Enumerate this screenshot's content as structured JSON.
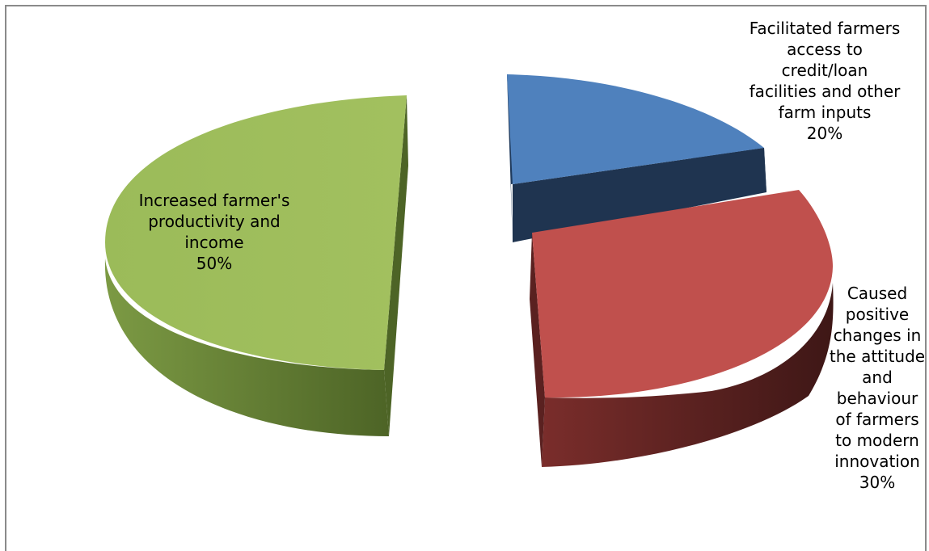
{
  "chart_data": {
    "type": "pie",
    "slices": [
      {
        "label_lines": [
          "Facilitated farmers",
          "access to",
          "credit/loan",
          "facilities and other",
          "farm inputs"
        ],
        "value": 20,
        "value_label": "20%",
        "color": "#4f81bd"
      },
      {
        "label_lines": [
          "Caused",
          "positive",
          "changes in",
          "the attitude",
          "and",
          "behaviour",
          "of farmers",
          "to modern",
          "innovation"
        ],
        "value": 30,
        "value_label": "30%",
        "color": "#c0504d"
      },
      {
        "label_lines": [
          "Increased farmer's",
          "productivity and",
          "income"
        ],
        "value": 50,
        "value_label": "50%",
        "color": "#9bbb59"
      }
    ]
  }
}
